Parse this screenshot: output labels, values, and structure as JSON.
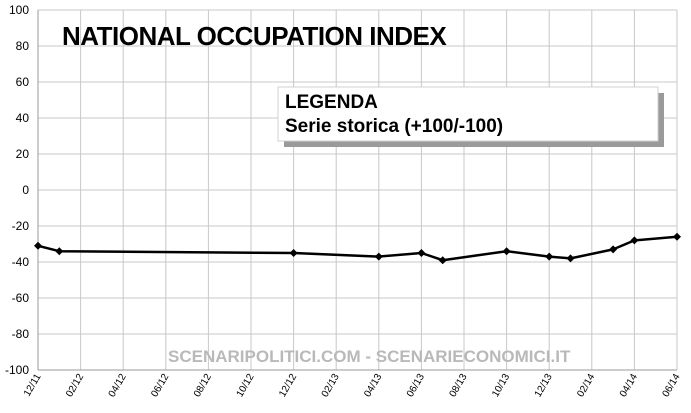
{
  "chart_data": {
    "type": "line",
    "title": "NATIONAL OCCUPATION INDEX",
    "legend": {
      "heading": "LEGENDA",
      "entry": "Serie storica (+100/-100)",
      "placement": "top-right"
    },
    "watermark": "SCENARIPOLITICI.COM - SCENARIECONOMICI.IT",
    "ylim": [
      -100,
      100
    ],
    "yticks": [
      "100",
      "80",
      "60",
      "40",
      "20",
      "0",
      "-20",
      "-40",
      "-60",
      "-80",
      "-100"
    ],
    "xtick_labels": [
      "12/11",
      "02/12",
      "04/12",
      "06/12",
      "08/12",
      "10/12",
      "12/12",
      "02/13",
      "04/13",
      "06/13",
      "08/13",
      "10/13",
      "12/13",
      "02/14",
      "04/14",
      "06/14"
    ],
    "grid": true,
    "line_color": "#000000",
    "series": [
      {
        "points": [
          {
            "x": "2011-12",
            "y": -31
          },
          {
            "x": "2012-01",
            "y": -34
          },
          {
            "x": "2012-12",
            "y": -35
          },
          {
            "x": "2013-04",
            "y": -37
          },
          {
            "x": "2013-06",
            "y": -35
          },
          {
            "x": "2013-07",
            "y": -39
          },
          {
            "x": "2013-10",
            "y": -34
          },
          {
            "x": "2013-12",
            "y": -37
          },
          {
            "x": "2014-01",
            "y": -38
          },
          {
            "x": "2014-03",
            "y": -33
          },
          {
            "x": "2014-04",
            "y": -28
          },
          {
            "x": "2014-06",
            "y": -26
          }
        ]
      }
    ]
  }
}
